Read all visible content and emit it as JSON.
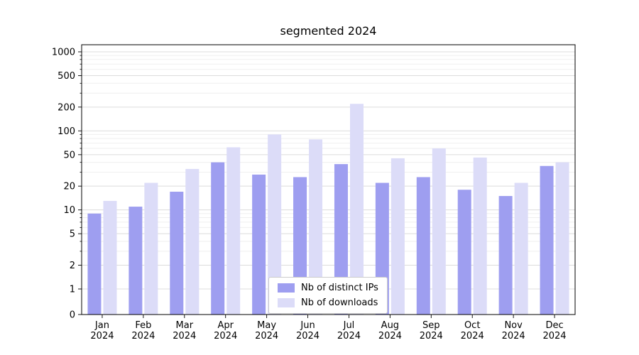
{
  "chart_data": {
    "type": "bar",
    "title": "segmented 2024",
    "categories": [
      "Jan 2024",
      "Feb 2024",
      "Mar 2024",
      "Apr 2024",
      "May 2024",
      "Jun 2024",
      "Jul 2024",
      "Aug 2024",
      "Sep 2024",
      "Oct 2024",
      "Nov 2024",
      "Dec 2024"
    ],
    "series": [
      {
        "name": "Nb of distinct IPs",
        "color": "#9e9ef0",
        "values": [
          9,
          11,
          17,
          40,
          28,
          26,
          38,
          22,
          26,
          18,
          15,
          36
        ]
      },
      {
        "name": "Nb of downloads",
        "color": "#dcdcf8",
        "values": [
          13,
          22,
          33,
          62,
          90,
          78,
          220,
          45,
          60,
          46,
          22,
          40
        ]
      }
    ],
    "yscale": "symlog",
    "yticks": [
      0,
      1,
      2,
      5,
      10,
      20,
      50,
      100,
      200,
      500,
      1000
    ],
    "ylim": [
      0,
      1400
    ],
    "grid": true,
    "legend_position": "lower center"
  },
  "colors": {
    "grid_major": "#dcdcdc",
    "grid_minor": "#efefef",
    "axis": "#000000"
  }
}
